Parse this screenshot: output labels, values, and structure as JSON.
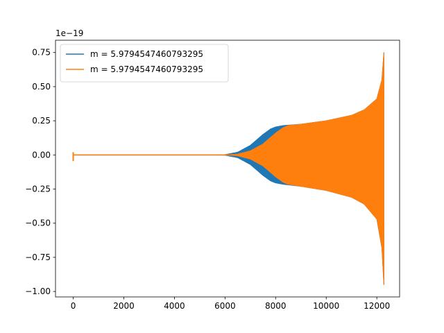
{
  "chart_data": {
    "type": "line",
    "title": "",
    "xlabel": "",
    "ylabel": "",
    "y_offset_label": "1e−19",
    "xlim": [
      -700,
      12900
    ],
    "ylim": [
      -1.04,
      0.84
    ],
    "x_ticks": [
      0,
      2000,
      4000,
      6000,
      8000,
      10000,
      12000
    ],
    "x_tick_labels": [
      "0",
      "2000",
      "4000",
      "6000",
      "8000",
      "10000",
      "12000"
    ],
    "y_ticks": [
      -1.0,
      -0.75,
      -0.5,
      -0.25,
      0.0,
      0.25,
      0.5,
      0.75
    ],
    "y_tick_labels": [
      "−1.00",
      "−0.75",
      "−0.50",
      "−0.25",
      "0.00",
      "0.25",
      "0.50",
      "0.75"
    ],
    "grid": false,
    "legend": "upper-left",
    "series": [
      {
        "name": "m = 5.9794547460793295",
        "color": "#1f77b4",
        "envelope_upper": [
          [
            0,
            0.0
          ],
          [
            5600,
            0.0
          ],
          [
            6000,
            0.002
          ],
          [
            6500,
            0.02
          ],
          [
            7000,
            0.07
          ],
          [
            7500,
            0.15
          ],
          [
            7800,
            0.19
          ],
          [
            8000,
            0.205
          ],
          [
            8300,
            0.215
          ],
          [
            9000,
            0.225
          ],
          [
            10000,
            0.25
          ],
          [
            11000,
            0.29
          ],
          [
            11500,
            0.33
          ],
          [
            12000,
            0.41
          ],
          [
            12200,
            0.55
          ],
          [
            12280,
            0.75
          ]
        ],
        "envelope_lower": [
          [
            0,
            0.0
          ],
          [
            5600,
            0.0
          ],
          [
            6000,
            -0.002
          ],
          [
            6500,
            -0.02
          ],
          [
            7000,
            -0.07
          ],
          [
            7500,
            -0.15
          ],
          [
            7800,
            -0.19
          ],
          [
            8000,
            -0.205
          ],
          [
            8300,
            -0.215
          ],
          [
            9000,
            -0.23
          ],
          [
            10000,
            -0.26
          ],
          [
            11000,
            -0.31
          ],
          [
            11500,
            -0.36
          ],
          [
            12000,
            -0.47
          ],
          [
            12200,
            -0.68
          ],
          [
            12280,
            -0.95
          ]
        ]
      },
      {
        "name": "m = 5.9794547460793295",
        "color": "#ff7f0e",
        "envelope_upper": [
          [
            0,
            0.0
          ],
          [
            6000,
            0.0
          ],
          [
            6500,
            0.006
          ],
          [
            7000,
            0.03
          ],
          [
            7500,
            0.08
          ],
          [
            8000,
            0.16
          ],
          [
            8300,
            0.2
          ],
          [
            8500,
            0.215
          ],
          [
            9000,
            0.225
          ],
          [
            10000,
            0.25
          ],
          [
            11000,
            0.29
          ],
          [
            11500,
            0.33
          ],
          [
            12000,
            0.41
          ],
          [
            12200,
            0.55
          ],
          [
            12280,
            0.75
          ]
        ],
        "envelope_lower": [
          [
            0,
            0.0
          ],
          [
            6000,
            0.0
          ],
          [
            6500,
            -0.006
          ],
          [
            7000,
            -0.03
          ],
          [
            7500,
            -0.08
          ],
          [
            8000,
            -0.16
          ],
          [
            8300,
            -0.2
          ],
          [
            8500,
            -0.215
          ],
          [
            9000,
            -0.23
          ],
          [
            10000,
            -0.26
          ],
          [
            11000,
            -0.31
          ],
          [
            11500,
            -0.36
          ],
          [
            12000,
            -0.47
          ],
          [
            12200,
            -0.68
          ],
          [
            12280,
            -0.95
          ]
        ],
        "initial_spike": [
          [
            0,
            0.02
          ],
          [
            0,
            -0.045
          ]
        ]
      }
    ]
  }
}
